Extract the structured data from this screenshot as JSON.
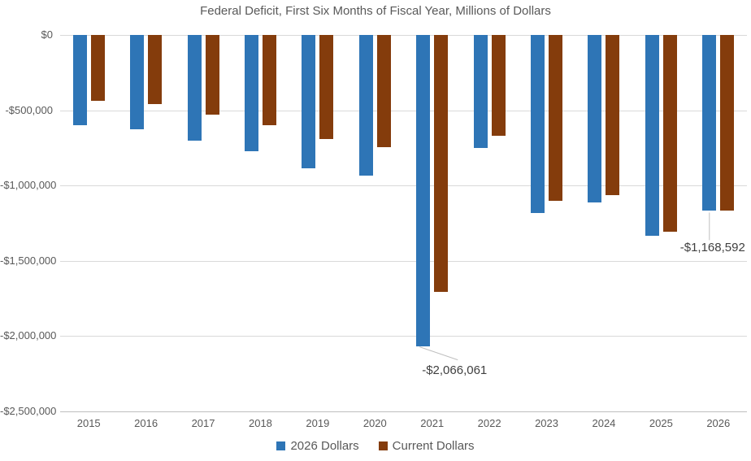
{
  "chart_data": {
    "type": "bar",
    "title": "Federal Deficit, First Six Months of Fiscal Year, Millions of Dollars",
    "xlabel": "",
    "ylabel": "",
    "unit": "millions of dollars",
    "grid": true,
    "legend_position": "bottom",
    "ylim": [
      -2500000,
      0
    ],
    "categories": [
      "2015",
      "2016",
      "2017",
      "2018",
      "2019",
      "2020",
      "2021",
      "2022",
      "2023",
      "2024",
      "2025",
      "2026"
    ],
    "series": [
      {
        "name": "2026 Dollars",
        "color": "#2E75B6",
        "values": [
          -602000,
          -625000,
          -700000,
          -772000,
          -884000,
          -932000,
          -2066061,
          -748000,
          -1183000,
          -1113000,
          -1332000,
          -1168592
        ]
      },
      {
        "name": "Current Dollars",
        "color": "#843C0C",
        "values": [
          -439000,
          -461000,
          -527000,
          -600000,
          -691000,
          -743000,
          -1706000,
          -668000,
          -1102000,
          -1065000,
          -1307000,
          -1168592
        ]
      }
    ],
    "yticks": {
      "values": [
        0,
        -500000,
        -1000000,
        -1500000,
        -2000000,
        -2500000
      ],
      "labels": [
        "$0",
        "-$500,000",
        "-$1,000,000",
        "-$1,500,000",
        "-$2,000,000",
        "-$2,500,000"
      ]
    },
    "annotations": [
      {
        "text": "-$2,066,061",
        "category": "2021",
        "series": 0,
        "style": "slant"
      },
      {
        "text": "-$1,168,592",
        "category": "2026",
        "series": 0,
        "style": "vertical"
      }
    ]
  },
  "colors": {
    "background": "#FFFFFF",
    "grid": "#D9D9D9",
    "axis": "#BFBFBF",
    "leader": "#BFBFBF",
    "text": "#595959",
    "annotation_text": "#404040"
  }
}
